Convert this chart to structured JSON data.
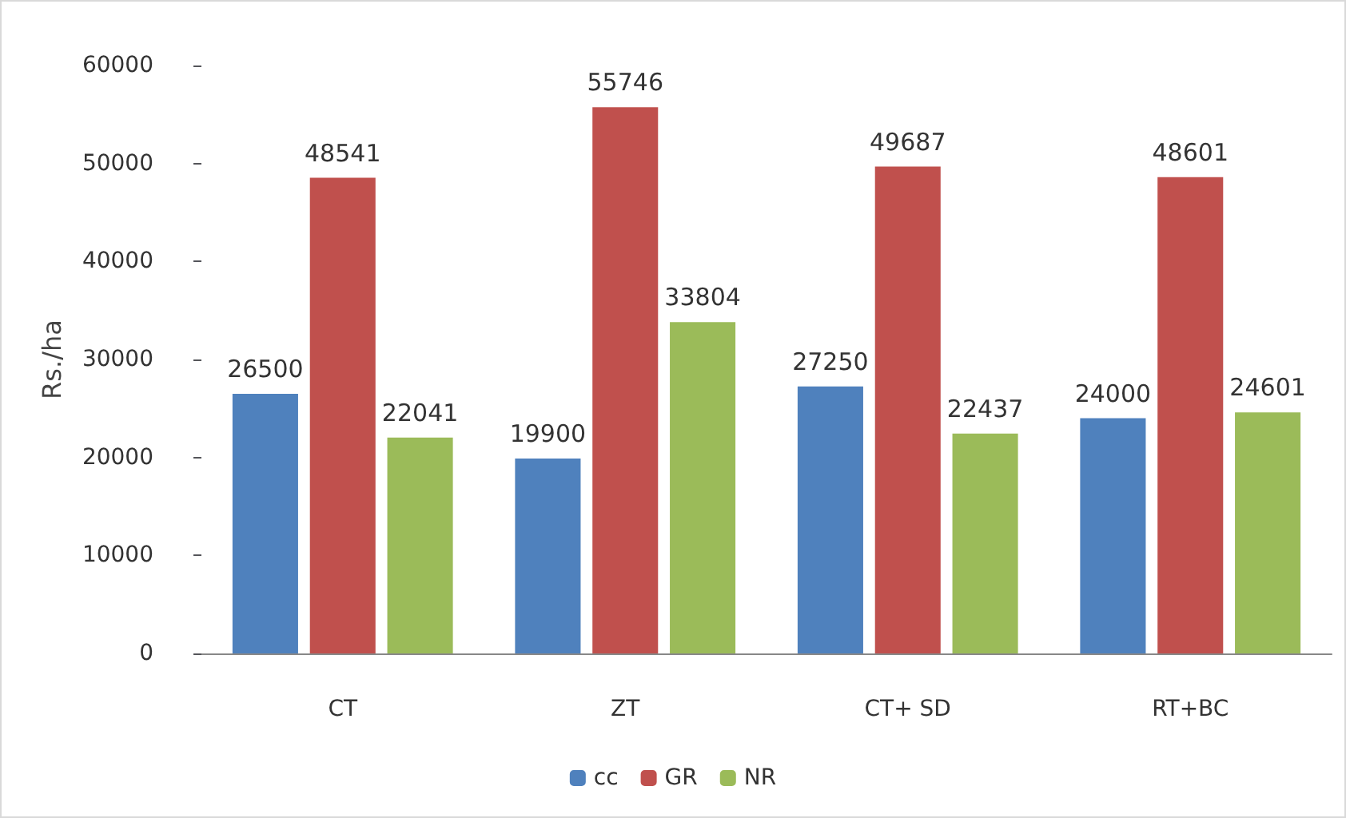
{
  "chart_data": {
    "type": "bar",
    "ylabel": "Rs./ha",
    "categories": [
      "CT",
      "ZT",
      "CT+ SD",
      "RT+BC"
    ],
    "series": [
      {
        "name": "cc",
        "color": "#4f81bd",
        "values": [
          26500,
          19900,
          27250,
          24000
        ]
      },
      {
        "name": "GR",
        "color": "#c0504d",
        "values": [
          48541,
          55746,
          49687,
          48601
        ]
      },
      {
        "name": "NR",
        "color": "#9bbb59",
        "values": [
          22041,
          33804,
          22437,
          24601
        ]
      }
    ],
    "ylim": [
      0,
      60000
    ],
    "yticks": [
      0,
      10000,
      20000,
      30000,
      40000,
      50000,
      60000
    ],
    "grid": false,
    "legend": "bottom",
    "data_labels": true
  }
}
